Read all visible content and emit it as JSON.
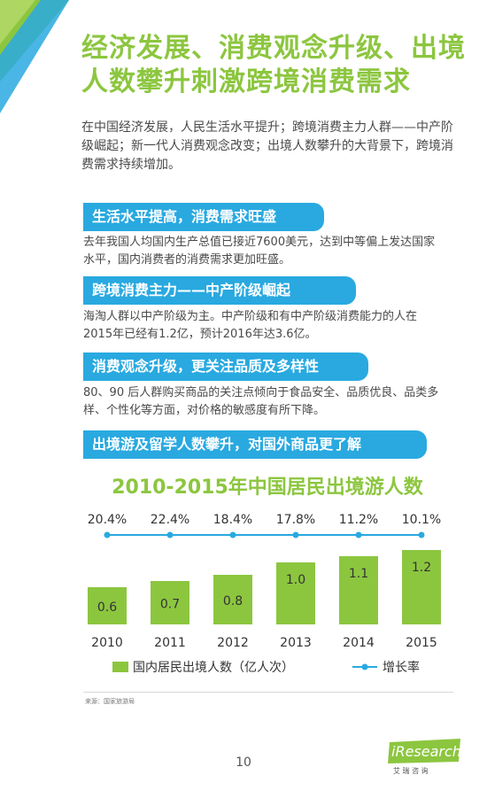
{
  "title": "经济发展、消费观念升级、出境人数攀升刺激跨境消费需求",
  "intro": "在中国经济发展，人民生活水平提升；跨境消费主力人群——中产阶级崛起；新一代人消费观念改变；出境人数攀升的大背景下，跨境消费需求持续增加。",
  "sections": [
    {
      "heading": "生活水平提高，消费需求旺盛",
      "body": "去年我国人均国内生产总值已接近7600美元，达到中等偏上发达国家水平，国内消费者的消费需求更加旺盛。"
    },
    {
      "heading": "跨境消费主力——中产阶级崛起",
      "body": "海淘人群以中产阶级为主。中产阶级和有中产阶级消费能力的人在2015年已经有1.2亿，预计2016年达3.6亿。"
    },
    {
      "heading": "消费观念升级，更关注品质及多样性",
      "body": "80、90 后人群购买商品的关注点倾向于食品安全、品质优良、品类多样、个性化等方面，对价格的敏感度有所下降。"
    },
    {
      "heading": "出境游及留学人数攀升，对国外商品更了解",
      "body": ""
    }
  ],
  "chart_data": {
    "type": "bar",
    "title": "2010-2015年中国居民出境游人数",
    "categories": [
      "2010",
      "2011",
      "2012",
      "2013",
      "2014",
      "2015"
    ],
    "series": [
      {
        "name": "国内居民出境人数（亿人次）",
        "type": "bar",
        "values": [
          0.6,
          0.7,
          0.8,
          1.0,
          1.1,
          1.2
        ],
        "labels": [
          "0.6",
          "0.7",
          "0.8",
          "1.0",
          "1.1",
          "1.2"
        ],
        "color": "#8cc63f"
      },
      {
        "name": "增长率",
        "type": "line",
        "values": [
          20.4,
          22.4,
          18.4,
          17.8,
          11.2,
          10.1
        ],
        "labels": [
          "20.4%",
          "22.4%",
          "18.4%",
          "17.8%",
          "11.2%",
          "10.1%"
        ],
        "color": "#29a9e0"
      }
    ],
    "legend_position": "bottom",
    "grid": false
  },
  "source": "来源：国家旅游局",
  "page_number": "10",
  "logo": {
    "text": "iResearch",
    "subtext": "艾 瑞 咨 询"
  },
  "colors": {
    "green": "#8cc63f",
    "blue": "#29a9e0",
    "header_blue": "#29a9e0"
  }
}
